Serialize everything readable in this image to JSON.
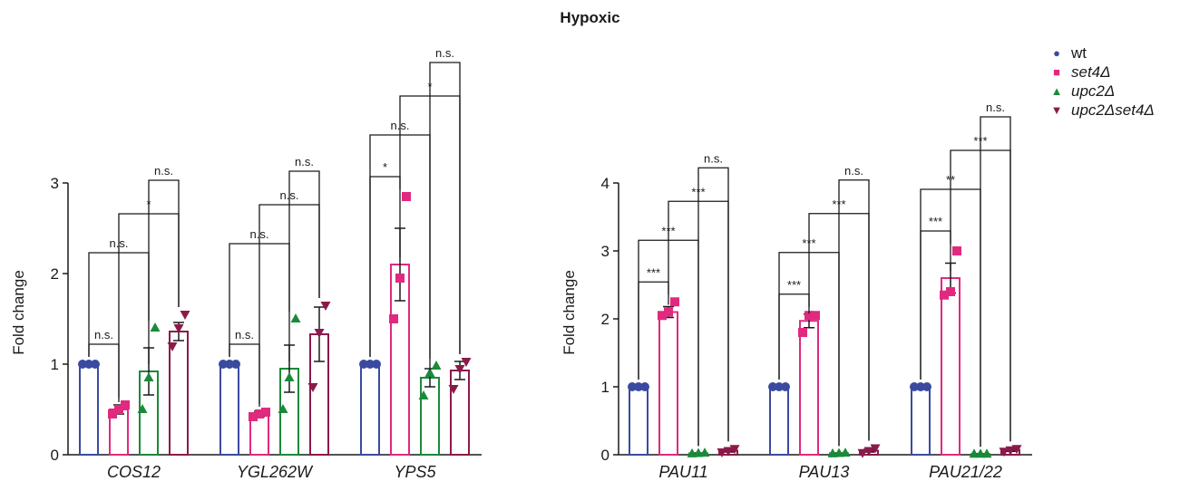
{
  "figure_title": "Hypoxic",
  "legend": [
    {
      "label": "wt",
      "italic": false,
      "marker": "circle-icon",
      "color": "#3b4aa0"
    },
    {
      "label": "set4Δ",
      "italic": true,
      "marker": "square-icon",
      "color": "#e0297f"
    },
    {
      "label": "upc2Δ",
      "italic": true,
      "marker": "triangle-up-icon",
      "color": "#1a8a3a"
    },
    {
      "label": "upc2Δset4Δ",
      "italic": true,
      "marker": "triangle-down-icon",
      "color": "#8b1a4a"
    }
  ],
  "chart_data": [
    {
      "type": "bar",
      "title": "",
      "ylabel": "Fold change",
      "xlabel": "",
      "ylim": [
        0,
        3
      ],
      "yticks": [
        0,
        1,
        2,
        3
      ],
      "categories": [
        "COS12",
        "YGL262W",
        "YPS5"
      ],
      "series": [
        {
          "name": "wt",
          "means": [
            1.0,
            1.0,
            1.0
          ],
          "sem": [
            0,
            0,
            0
          ],
          "points": [
            [
              1,
              1,
              1
            ],
            [
              1,
              1,
              1
            ],
            [
              1,
              1,
              1
            ]
          ]
        },
        {
          "name": "set4Δ",
          "means": [
            0.5,
            0.45,
            2.1
          ],
          "sem": [
            0.05,
            0.03,
            0.4
          ],
          "points": [
            [
              0.45,
              0.5,
              0.55
            ],
            [
              0.42,
              0.45,
              0.47
            ],
            [
              1.5,
              1.95,
              2.85
            ]
          ]
        },
        {
          "name": "upc2Δ",
          "means": [
            0.92,
            0.95,
            0.85
          ],
          "sem": [
            0.26,
            0.26,
            0.1
          ],
          "points": [
            [
              0.5,
              0.85,
              1.4
            ],
            [
              0.5,
              0.85,
              1.5
            ],
            [
              0.65,
              0.9,
              0.98
            ]
          ]
        },
        {
          "name": "upc2Δset4Δ",
          "means": [
            1.36,
            1.33,
            0.93
          ],
          "sem": [
            0.1,
            0.3,
            0.1
          ],
          "points": [
            [
              1.2,
              1.4,
              1.55
            ],
            [
              0.75,
              1.35,
              1.65
            ],
            [
              0.73,
              0.95,
              1.03
            ]
          ]
        }
      ],
      "significance": [
        {
          "category": 0,
          "pair": [
            2,
            3
          ],
          "label": "n.s."
        },
        {
          "category": 0,
          "pair": [
            1,
            3
          ],
          "label": "*"
        },
        {
          "category": 0,
          "pair": [
            0,
            2
          ],
          "label": "n.s."
        },
        {
          "category": 0,
          "pair": [
            0,
            1
          ],
          "label": "n.s."
        },
        {
          "category": 1,
          "pair": [
            2,
            3
          ],
          "label": "n.s."
        },
        {
          "category": 1,
          "pair": [
            1,
            3
          ],
          "label": "n.s."
        },
        {
          "category": 1,
          "pair": [
            0,
            2
          ],
          "label": "n.s."
        },
        {
          "category": 1,
          "pair": [
            0,
            1
          ],
          "label": "n.s."
        },
        {
          "category": 2,
          "pair": [
            2,
            3
          ],
          "label": "n.s."
        },
        {
          "category": 2,
          "pair": [
            1,
            3
          ],
          "label": "*"
        },
        {
          "category": 2,
          "pair": [
            0,
            2
          ],
          "label": "n.s."
        },
        {
          "category": 2,
          "pair": [
            0,
            1
          ],
          "label": "*"
        }
      ]
    },
    {
      "type": "bar",
      "title": "",
      "ylabel": "Fold change",
      "xlabel": "",
      "ylim": [
        0,
        4
      ],
      "yticks": [
        0,
        1,
        2,
        3,
        4
      ],
      "categories": [
        "PAU11",
        "PAU13",
        "PAU21/22"
      ],
      "series": [
        {
          "name": "wt",
          "means": [
            1.0,
            1.0,
            1.0
          ],
          "sem": [
            0,
            0,
            0
          ],
          "points": [
            [
              1,
              1,
              1
            ],
            [
              1,
              1,
              1
            ],
            [
              1,
              1,
              1
            ]
          ]
        },
        {
          "name": "set4Δ",
          "means": [
            2.1,
            1.97,
            2.6
          ],
          "sem": [
            0.08,
            0.1,
            0.22
          ],
          "points": [
            [
              2.05,
              2.1,
              2.25
            ],
            [
              1.8,
              2.05,
              2.05
            ],
            [
              2.35,
              2.4,
              3.0
            ]
          ]
        },
        {
          "name": "upc2Δ",
          "means": [
            0.02,
            0.02,
            0.01
          ],
          "sem": [
            0.005,
            0.005,
            0.002
          ],
          "points": [
            [
              0.015,
              0.02,
              0.025
            ],
            [
              0.015,
              0.02,
              0.025
            ],
            [
              0.01,
              0.01,
              0.01
            ]
          ]
        },
        {
          "name": "upc2Δset4Δ",
          "means": [
            0.06,
            0.06,
            0.07
          ],
          "sem": [
            0.02,
            0.02,
            0.02
          ],
          "points": [
            [
              0.04,
              0.06,
              0.09
            ],
            [
              0.03,
              0.06,
              0.1
            ],
            [
              0.05,
              0.07,
              0.09
            ]
          ]
        }
      ],
      "significance": [
        {
          "category": 0,
          "pair": [
            2,
            3
          ],
          "label": "n.s."
        },
        {
          "category": 0,
          "pair": [
            1,
            3
          ],
          "label": "***"
        },
        {
          "category": 0,
          "pair": [
            0,
            2
          ],
          "label": "***"
        },
        {
          "category": 0,
          "pair": [
            0,
            1
          ],
          "label": "***"
        },
        {
          "category": 1,
          "pair": [
            2,
            3
          ],
          "label": "n.s."
        },
        {
          "category": 1,
          "pair": [
            1,
            3
          ],
          "label": "***"
        },
        {
          "category": 1,
          "pair": [
            0,
            2
          ],
          "label": "***"
        },
        {
          "category": 1,
          "pair": [
            0,
            1
          ],
          "label": "***"
        },
        {
          "category": 2,
          "pair": [
            2,
            3
          ],
          "label": "n.s."
        },
        {
          "category": 2,
          "pair": [
            1,
            3
          ],
          "label": "***"
        },
        {
          "category": 2,
          "pair": [
            0,
            2
          ],
          "label": "**"
        },
        {
          "category": 2,
          "pair": [
            0,
            1
          ],
          "label": "***"
        }
      ]
    }
  ]
}
